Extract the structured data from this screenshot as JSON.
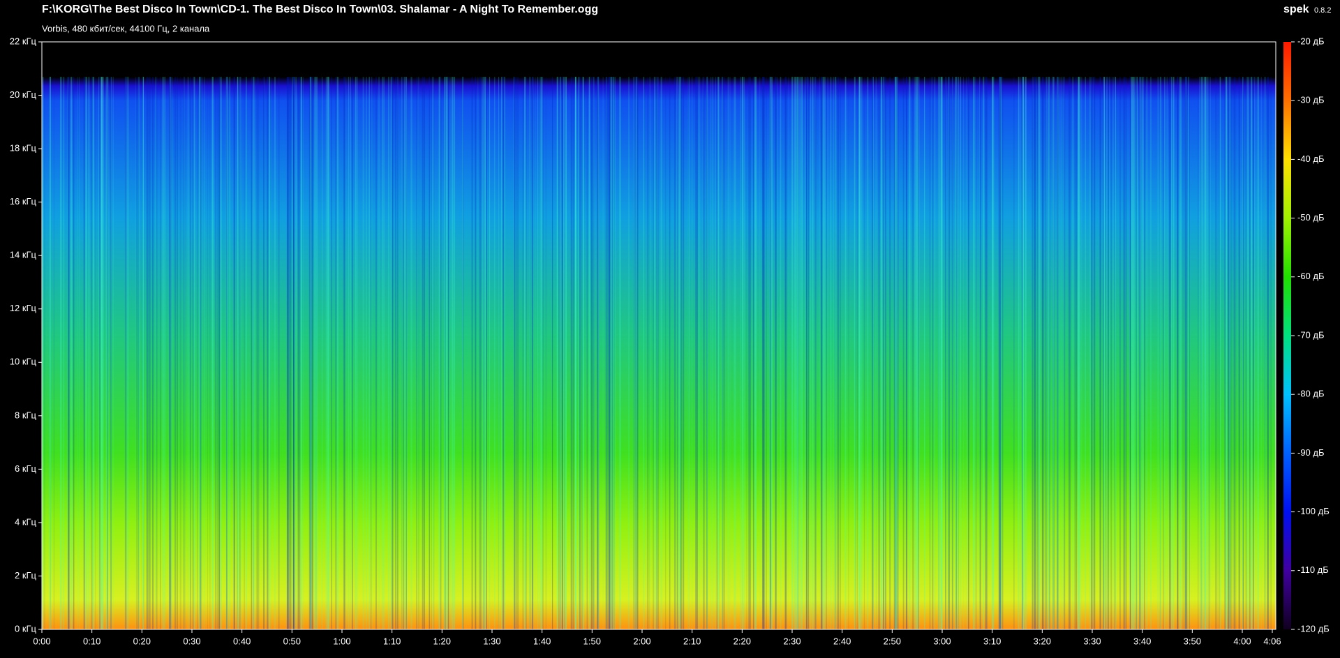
{
  "header": {
    "title": "F:\\KORG\\The Best Disco In Town\\CD-1. The Best Disco In Town\\03. Shalamar - A Night To Remember.ogg",
    "info": "Vorbis, 480 кбит/сек, 44100 Гц, 2 канала",
    "app": "spek",
    "version": "0.8.2"
  },
  "time_axis": {
    "ticks": [
      "0:00",
      "0:10",
      "0:20",
      "0:30",
      "0:40",
      "0:50",
      "1:00",
      "1:10",
      "1:20",
      "1:30",
      "1:40",
      "1:50",
      "2:00",
      "2:10",
      "2:20",
      "2:30",
      "2:40",
      "2:50",
      "3:00",
      "3:10",
      "3:20",
      "3:30",
      "3:40",
      "3:50",
      "4:00",
      "4:06"
    ]
  },
  "freq_axis": {
    "ticks": [
      "0 кГц",
      "2 кГц",
      "4 кГц",
      "6 кГц",
      "8 кГц",
      "10 кГц",
      "12 кГц",
      "14 кГц",
      "16 кГц",
      "18 кГц",
      "20 кГц",
      "22 кГц"
    ]
  },
  "level_axis": {
    "ticks": [
      "-20 дБ",
      "-30 дБ",
      "-40 дБ",
      "-50 дБ",
      "-60 дБ",
      "-70 дБ",
      "-80 дБ",
      "-90 дБ",
      "-100 дБ",
      "-110 дБ",
      "-120 дБ"
    ]
  }
}
